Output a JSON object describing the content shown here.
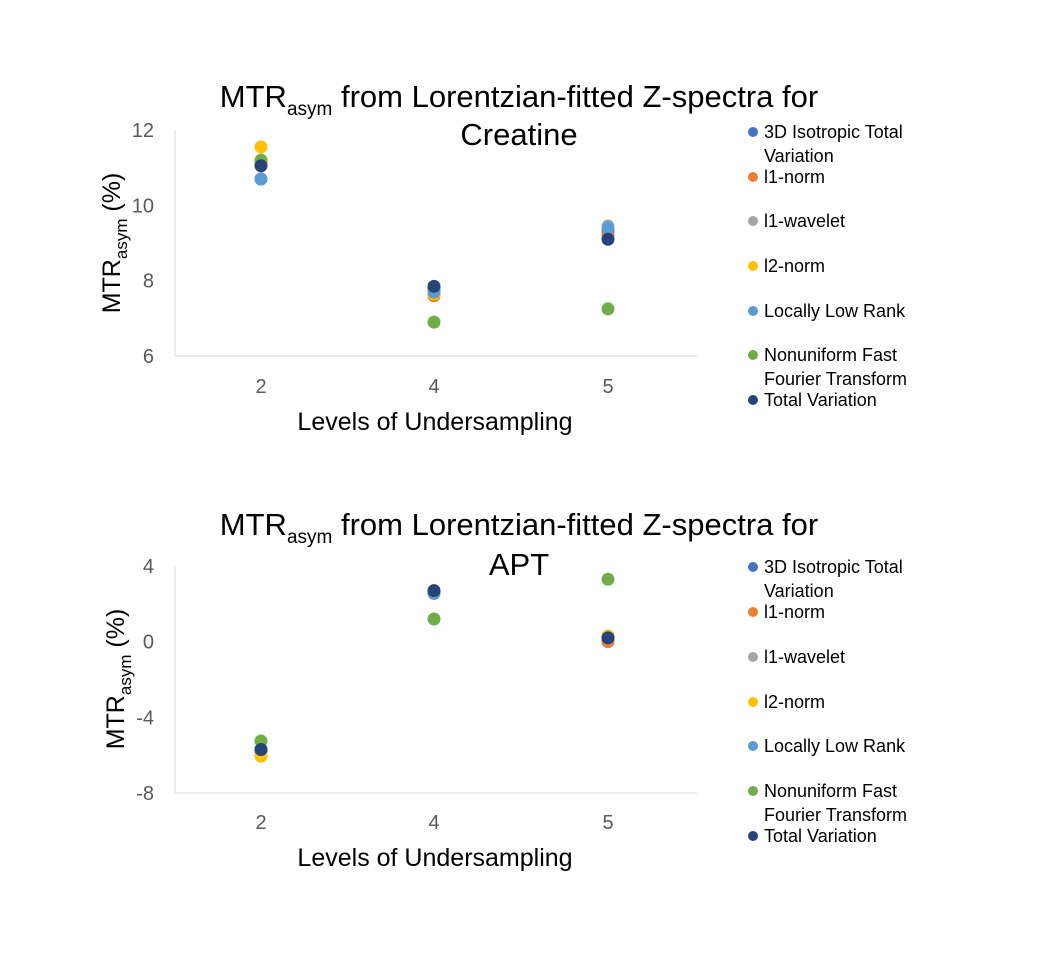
{
  "chart_data": [
    {
      "type": "scatter",
      "title_main": "MTR",
      "title_sub": "asym",
      "title_line1_rest": " from Lorentzian-fitted  Z-spectra for",
      "title_line2": "Creatine",
      "ylabel_main": "MTR",
      "ylabel_sub": "asym",
      "ylabel_rest": " (%)",
      "xlabel": "Levels of Undersampling",
      "categories": [
        "2",
        "4",
        "5"
      ],
      "ylim": [
        6,
        12
      ],
      "yticks": [
        "6",
        "8",
        "10",
        "12"
      ],
      "series": [
        {
          "name": "3D Isotropic Total Variation",
          "legend_lines": [
            "3D Isotropic Total",
            "Variation"
          ],
          "color": "#4472C4",
          "values": [
            10.7,
            7.8,
            9.3
          ]
        },
        {
          "name": "l1-norm",
          "legend_lines": [
            "l1-norm"
          ],
          "color": "#ED7D31",
          "values": [
            11.1,
            7.6,
            9.2
          ]
        },
        {
          "name": "l1-wavelet",
          "legend_lines": [
            "l1-wavelet"
          ],
          "color": "#A5A5A5",
          "values": [
            10.7,
            7.75,
            9.45
          ]
        },
        {
          "name": "l2-norm",
          "legend_lines": [
            "l2-norm"
          ],
          "color": "#FFC000",
          "values": [
            11.55,
            7.65,
            9.4
          ]
        },
        {
          "name": "Locally Low Rank",
          "legend_lines": [
            "Locally Low Rank"
          ],
          "color": "#5B9BD5",
          "values": [
            10.7,
            7.7,
            9.4
          ]
        },
        {
          "name": "Nonuniform Fast Fourier Transform",
          "legend_lines": [
            "Nonuniform Fast",
            "Fourier Transform"
          ],
          "color": "#70AD47",
          "values": [
            11.2,
            6.9,
            7.25
          ]
        },
        {
          "name": "Total Variation",
          "legend_lines": [
            "Total Variation"
          ],
          "color": "#264478",
          "values": [
            11.05,
            7.85,
            9.1
          ]
        }
      ]
    },
    {
      "type": "scatter",
      "title_main": "MTR",
      "title_sub": "asym",
      "title_line1_rest": " from Lorentzian-fitted  Z-spectra for",
      "title_line2": "APT",
      "ylabel_main": "MTR",
      "ylabel_sub": "asym",
      "ylabel_rest": " (%)",
      "xlabel": "Levels of Undersampling",
      "categories": [
        "2",
        "4",
        "5"
      ],
      "ylim": [
        -8,
        4
      ],
      "yticks": [
        "-8",
        "-4",
        "0",
        "4"
      ],
      "series": [
        {
          "name": "3D Isotropic Total Variation",
          "legend_lines": [
            "3D Isotropic Total",
            "Variation"
          ],
          "color": "#4472C4",
          "values": [
            -5.7,
            2.6,
            0.1
          ]
        },
        {
          "name": "l1-norm",
          "legend_lines": [
            "l1-norm"
          ],
          "color": "#ED7D31",
          "values": [
            -5.8,
            2.55,
            0.0
          ]
        },
        {
          "name": "l1-wavelet",
          "legend_lines": [
            "l1-wavelet"
          ],
          "color": "#A5A5A5",
          "values": [
            -5.75,
            2.6,
            0.2
          ]
        },
        {
          "name": "l2-norm",
          "legend_lines": [
            "l2-norm"
          ],
          "color": "#FFC000",
          "values": [
            -6.05,
            2.6,
            0.3
          ]
        },
        {
          "name": "Locally Low Rank",
          "legend_lines": [
            "Locally Low Rank"
          ],
          "color": "#5B9BD5",
          "values": [
            -5.7,
            2.55,
            0.2
          ]
        },
        {
          "name": "Nonuniform Fast Fourier Transform",
          "legend_lines": [
            "Nonuniform Fast",
            "Fourier Transform"
          ],
          "color": "#70AD47",
          "values": [
            -5.25,
            1.2,
            3.3
          ]
        },
        {
          "name": "Total Variation",
          "legend_lines": [
            "Total Variation"
          ],
          "color": "#264478",
          "values": [
            -5.7,
            2.7,
            0.2
          ]
        }
      ]
    }
  ]
}
